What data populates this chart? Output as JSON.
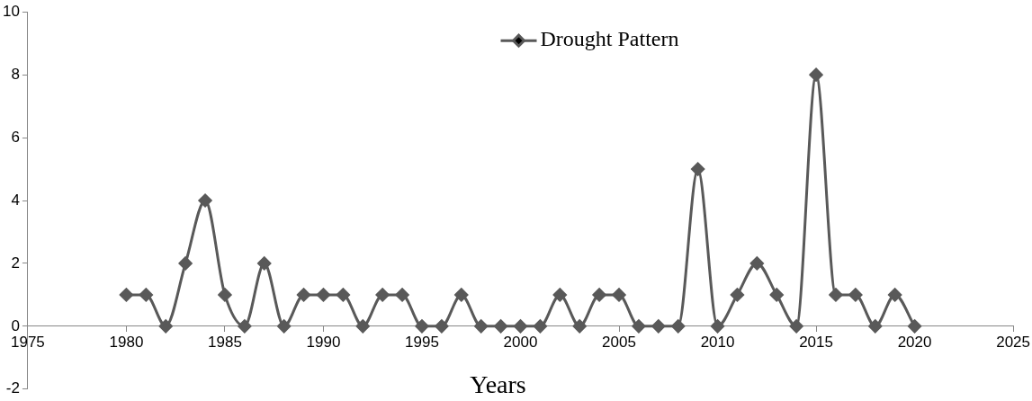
{
  "chart_data": {
    "type": "line",
    "xlabel": "Years",
    "x": [
      1980,
      1981,
      1982,
      1983,
      1984,
      1985,
      1986,
      1987,
      1988,
      1989,
      1990,
      1991,
      1992,
      1993,
      1994,
      1995,
      1996,
      1997,
      1998,
      1999,
      2000,
      2001,
      2002,
      2003,
      2004,
      2005,
      2006,
      2007,
      2008,
      2009,
      2010,
      2011,
      2012,
      2013,
      2014,
      2015,
      2016,
      2017,
      2018,
      2019,
      2020
    ],
    "series": [
      {
        "name": "Drought Pattern",
        "color": "#595959",
        "values": [
          1,
          1,
          0,
          2,
          4,
          1,
          0,
          2,
          0,
          1,
          1,
          1,
          0,
          1,
          1,
          0,
          0,
          1,
          0,
          0,
          0,
          0,
          1,
          0,
          1,
          1,
          0,
          0,
          0,
          5,
          0,
          1,
          2,
          1,
          0,
          8,
          1,
          1,
          0,
          1,
          0
        ]
      }
    ],
    "xlim": [
      1975,
      2025
    ],
    "xticks": [
      1975,
      1980,
      1985,
      1990,
      1995,
      2000,
      2005,
      2010,
      2015,
      2020,
      2025
    ],
    "ylim": [
      -2,
      10
    ],
    "yticks": [
      -2,
      0,
      2,
      4,
      6,
      8,
      10
    ],
    "grid": false,
    "legend": "top",
    "marker": "diamond",
    "line_style": "solid"
  }
}
